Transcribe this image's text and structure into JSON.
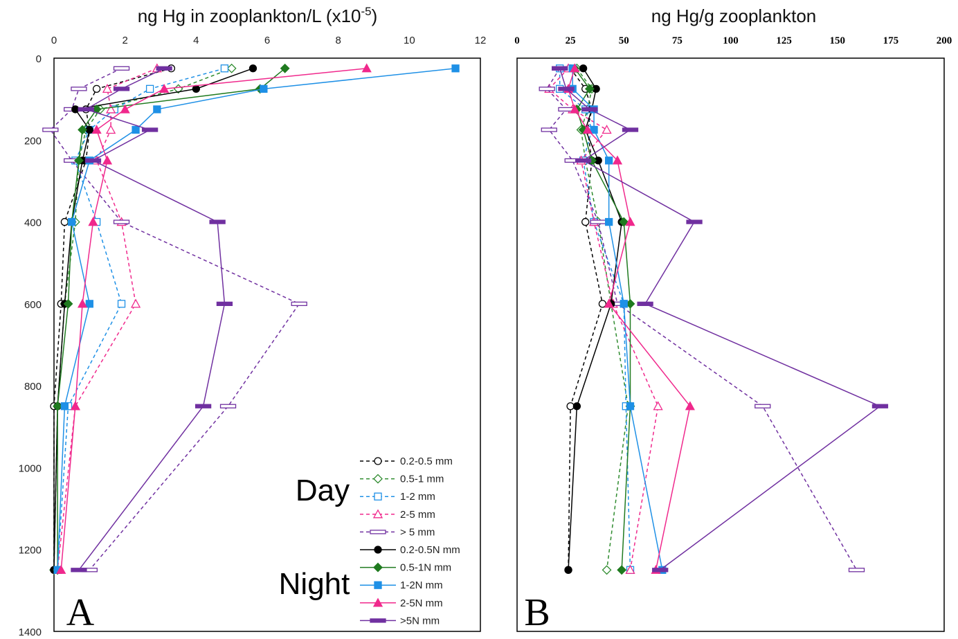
{
  "chart_data": [
    {
      "type": "line",
      "panel_letter": "A",
      "title_main": "ng Hg in zooplankton/L (x10",
      "title_sup": "-5",
      "title_end": ")",
      "xlim": [
        0,
        12
      ],
      "ylim": [
        0,
        1400
      ],
      "x_ticks": [
        "0",
        "2",
        "4",
        "6",
        "8",
        "10",
        "12"
      ],
      "y_ticks": [
        "0",
        "200",
        "400",
        "600",
        "800",
        "1000",
        "1200",
        "1400"
      ],
      "y_reversed": true,
      "x_axis_position": "top",
      "depths": [
        25,
        75,
        125,
        175,
        250,
        400,
        600,
        850,
        1250
      ],
      "series": [
        {
          "name": "0.2-0.5 mm",
          "values": [
            3.3,
            1.2,
            0.9,
            1.0,
            0.9,
            0.3,
            0.2,
            0.0,
            0.0
          ]
        },
        {
          "name": "0.5-1 mm",
          "values": [
            5.0,
            3.5,
            1.3,
            0.9,
            0.7,
            0.6,
            0.3,
            0.1,
            0.0
          ]
        },
        {
          "name": "1-2 mm",
          "values": [
            4.8,
            2.7,
            1.7,
            1.0,
            0.6,
            1.2,
            1.9,
            0.4,
            0.1
          ]
        },
        {
          "name": "2-5 mm",
          "values": [
            2.9,
            1.5,
            1.6,
            1.6,
            1.2,
            1.9,
            2.3,
            0.6,
            0.1
          ]
        },
        {
          "name": "> 5 mm",
          "values": [
            1.9,
            0.7,
            0.5,
            -0.1,
            0.5,
            1.9,
            6.9,
            4.9,
            1.0
          ]
        },
        {
          "name": "0.2-0.5N mm",
          "values": [
            5.6,
            4.0,
            0.6,
            1.0,
            0.8,
            0.5,
            0.3,
            0.1,
            0.0
          ]
        },
        {
          "name": "0.5-1N mm",
          "values": [
            6.5,
            5.8,
            1.2,
            0.8,
            0.7,
            0.5,
            0.4,
            0.1,
            0.1
          ]
        },
        {
          "name": "1-2N mm",
          "values": [
            11.3,
            5.9,
            2.9,
            2.3,
            1.0,
            0.5,
            1.0,
            0.3,
            0.1
          ]
        },
        {
          "name": "2-5N mm",
          "values": [
            8.8,
            3.1,
            2.0,
            1.2,
            1.5,
            1.1,
            0.8,
            0.6,
            0.2
          ]
        },
        {
          "name": ">5N mm",
          "values": [
            3.1,
            1.9,
            0.9,
            2.7,
            1.1,
            4.6,
            4.8,
            4.2,
            0.7
          ]
        }
      ],
      "labels": {
        "day": "Day",
        "night": "Night"
      }
    },
    {
      "type": "line",
      "panel_letter": "B",
      "title": "ng Hg/g zooplankton",
      "xlim": [
        0,
        200
      ],
      "ylim": [
        0,
        1400
      ],
      "x_ticks": [
        "0",
        "25",
        "50",
        "75",
        "100",
        "125",
        "150",
        "175",
        "200"
      ],
      "y_reversed": true,
      "x_axis_position": "top",
      "depths": [
        25,
        75,
        125,
        175,
        250,
        400,
        600,
        850,
        1250
      ],
      "series": [
        {
          "name": "0.2-0.5 mm",
          "values": [
            25,
            32,
            35,
            33,
            35,
            32,
            40,
            25,
            24
          ]
        },
        {
          "name": "0.5-1 mm",
          "values": [
            28,
            35,
            33,
            30,
            32,
            38,
            44,
            52,
            42
          ]
        },
        {
          "name": "1-2 mm",
          "values": [
            20,
            20,
            32,
            35,
            31,
            36,
            50,
            51,
            53
          ]
        },
        {
          "name": "2-5 mm",
          "values": [
            24,
            15,
            26,
            42,
            30,
            36,
            45,
            66,
            53
          ]
        },
        {
          "name": "> 5 mm",
          "values": [
            20,
            14,
            23,
            15,
            26,
            38,
            47,
            115,
            159
          ]
        },
        {
          "name": "0.2-0.5N mm",
          "values": [
            31,
            37,
            35,
            32,
            38,
            49,
            44,
            28,
            24
          ]
        },
        {
          "name": "0.5-1N mm",
          "values": [
            27,
            34,
            28,
            31,
            35,
            50,
            53,
            53,
            49
          ]
        },
        {
          "name": "1-2N mm",
          "values": [
            26,
            26,
            36,
            36,
            43,
            43,
            50,
            53,
            68
          ]
        },
        {
          "name": "2-5N mm",
          "values": [
            27,
            24,
            27,
            33,
            47,
            53,
            43,
            81,
            65
          ]
        },
        {
          "name": ">5N mm",
          "values": [
            20,
            23,
            34,
            53,
            31,
            83,
            60,
            170,
            67
          ]
        }
      ]
    }
  ],
  "legend": [
    {
      "label": "0.2-0.5 mm",
      "color": "#000000",
      "dash": true,
      "marker": "circle",
      "filled": false
    },
    {
      "label": "0.5-1 mm",
      "color": "#2e8b2e",
      "dash": true,
      "marker": "diamond",
      "filled": false
    },
    {
      "label": "1-2 mm",
      "color": "#1e90e6",
      "dash": true,
      "marker": "square",
      "filled": false
    },
    {
      "label": "2-5 mm",
      "color": "#f0288c",
      "dash": true,
      "marker": "triangle",
      "filled": false
    },
    {
      "label": "> 5 mm",
      "color": "#7030a0",
      "dash": true,
      "marker": "bar",
      "filled": false
    },
    {
      "label": "0.2-0.5N mm",
      "color": "#000000",
      "dash": false,
      "marker": "circle",
      "filled": true
    },
    {
      "label": "0.5-1N mm",
      "color": "#1f7a1f",
      "dash": false,
      "marker": "diamond",
      "filled": true
    },
    {
      "label": "1-2N mm",
      "color": "#1e90e6",
      "dash": false,
      "marker": "square",
      "filled": true
    },
    {
      "label": "2-5N mm",
      "color": "#f0288c",
      "dash": false,
      "marker": "triangle",
      "filled": true
    },
    {
      "label": ">5N mm",
      "color": "#7030a0",
      "dash": false,
      "marker": "bar",
      "filled": true
    }
  ]
}
